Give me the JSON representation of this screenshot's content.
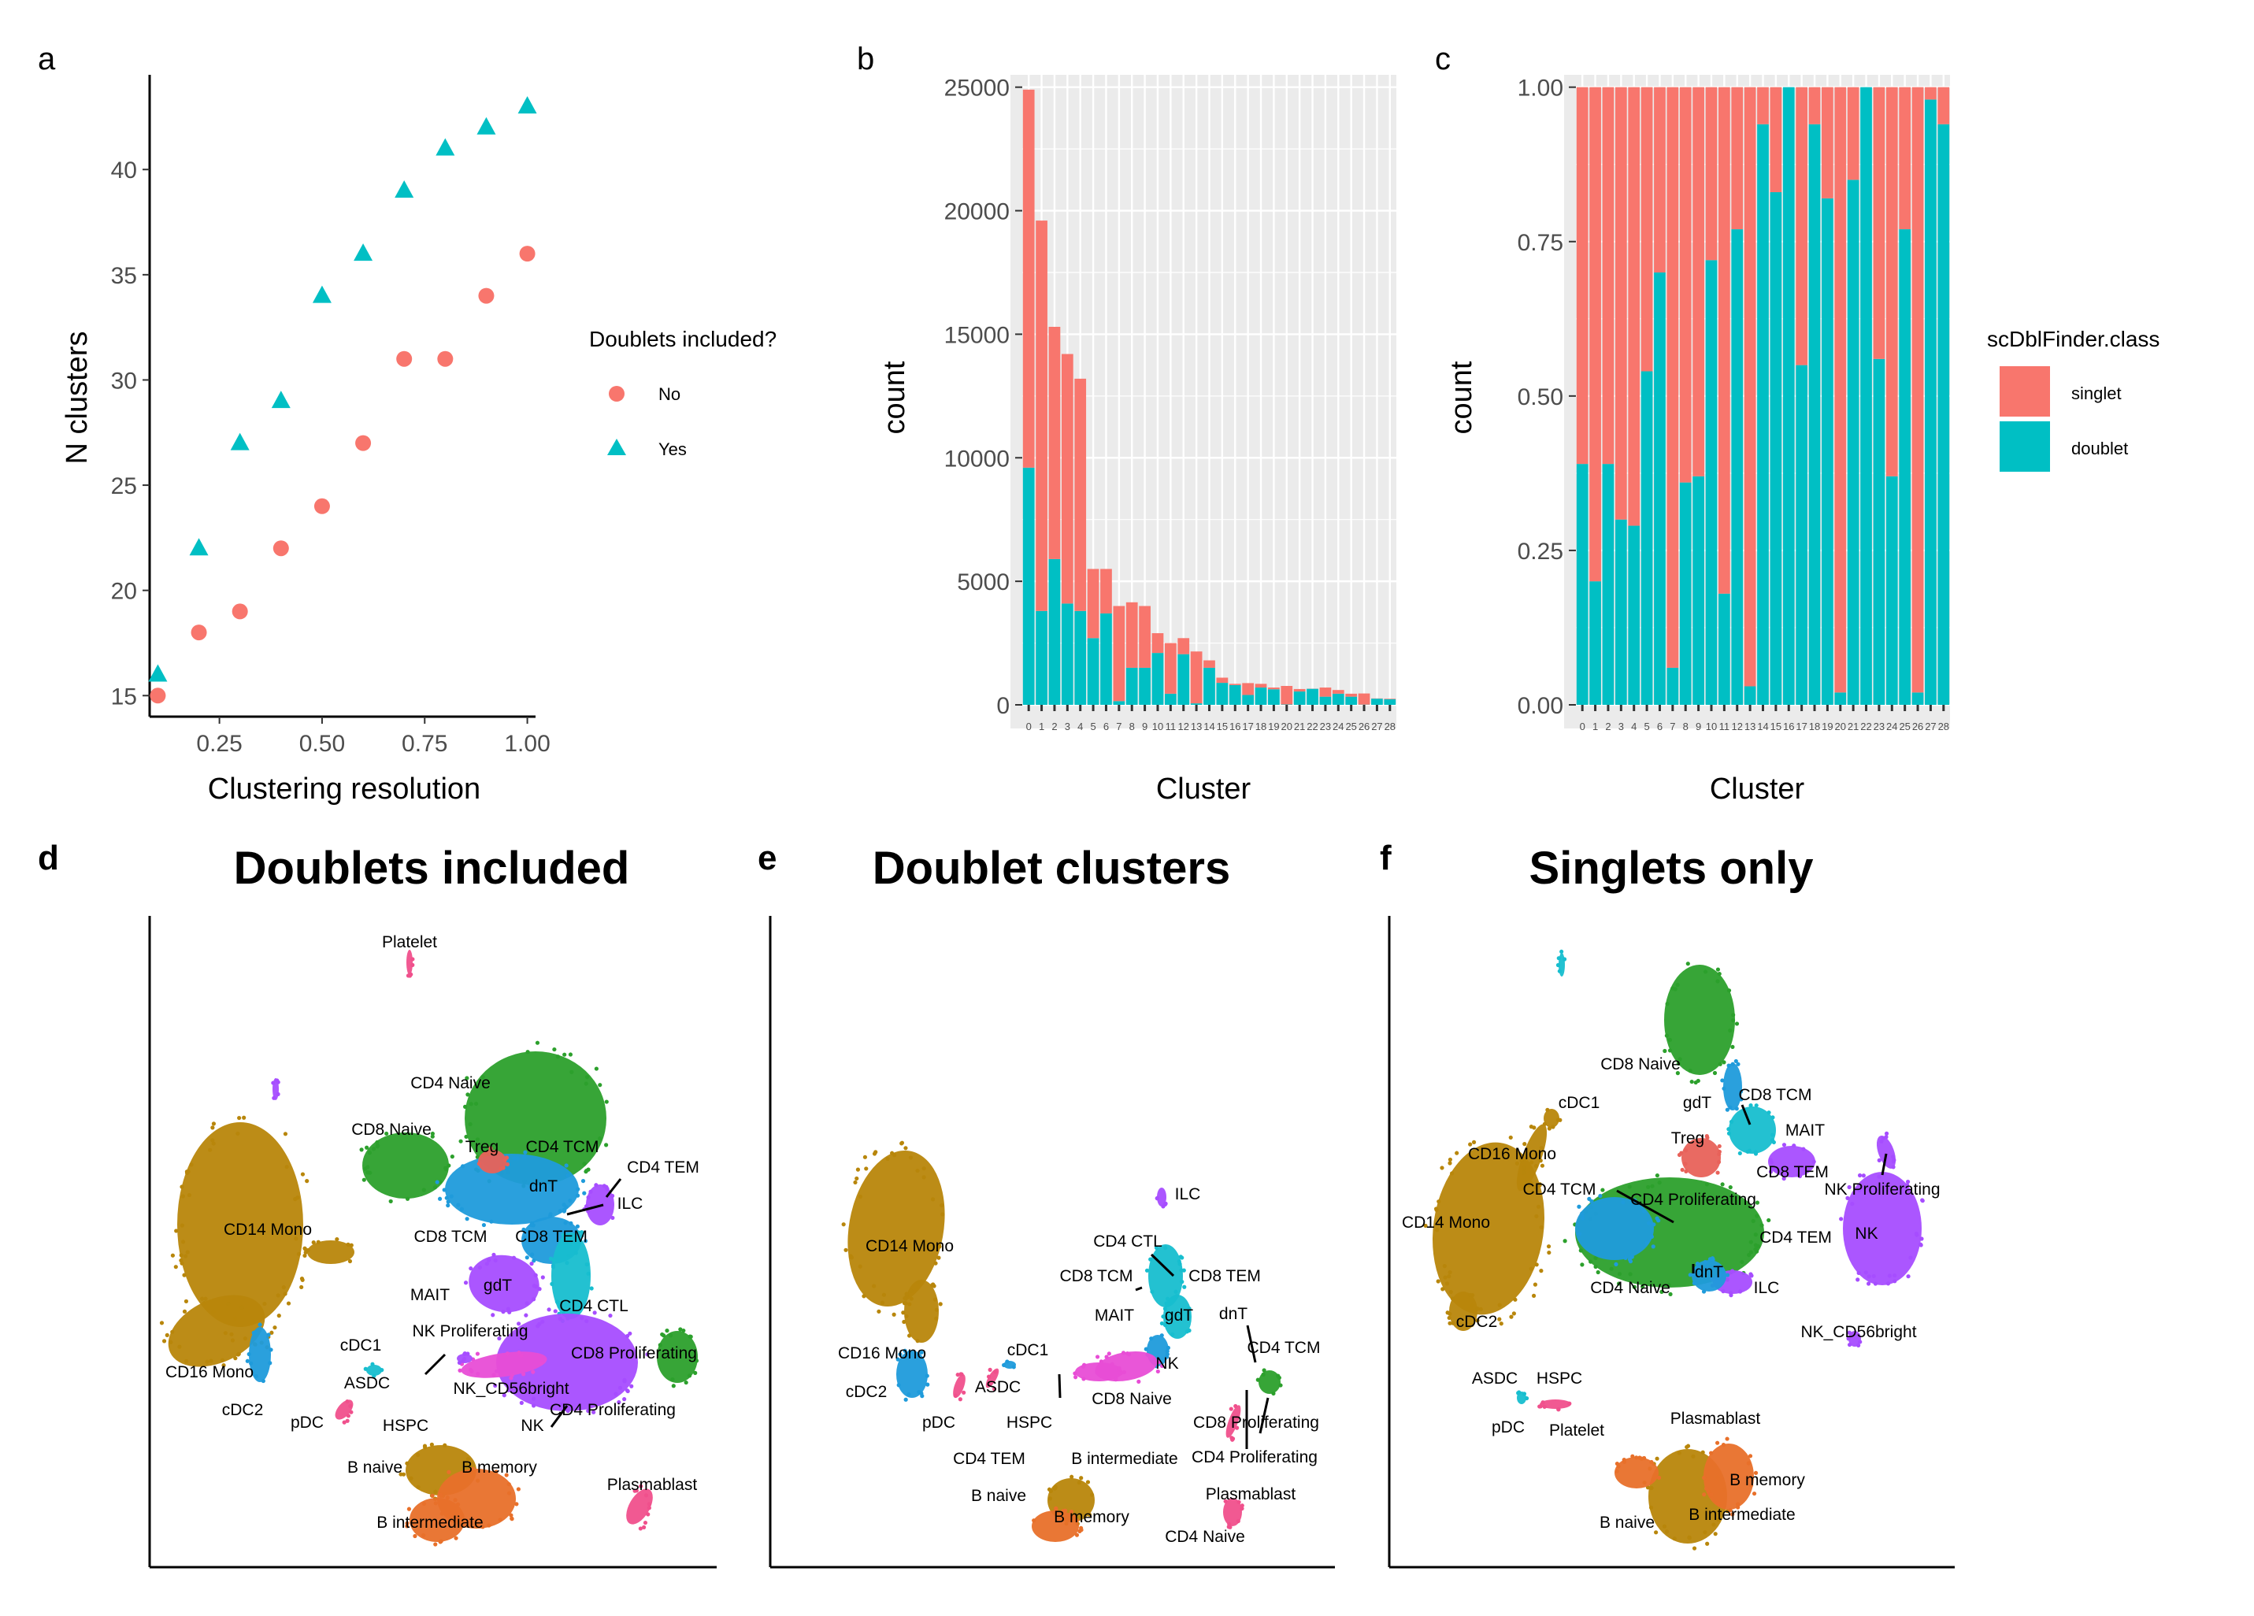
{
  "colors": {
    "no": "#F8766D",
    "yes": "#00BFC4",
    "singlet": "#F8766D",
    "doublet": "#00BFC4",
    "panel_bg": "#EBEBEB",
    "grid": "#FFFFFF",
    "umap": [
      "#B8860B",
      "#2CA02C",
      "#1F9BDB",
      "#A64DFF",
      "#E84DD6",
      "#E8702A",
      "#17BECF",
      "#F0508C",
      "#E8625A"
    ]
  },
  "panels": {
    "a": "a",
    "b": "b",
    "c": "c",
    "d": "d",
    "e": "e",
    "f": "f"
  },
  "chart_data": [
    {
      "id": "a",
      "type": "scatter",
      "xlabel": "Clustering resolution",
      "ylabel": "N clusters",
      "xlim": [
        0.08,
        1.02
      ],
      "ylim": [
        14,
        44.5
      ],
      "xticks": [
        0.25,
        0.5,
        0.75,
        1.0
      ],
      "xtick_labels": [
        "0.25",
        "0.50",
        "0.75",
        "1.00"
      ],
      "yticks": [
        15,
        20,
        25,
        30,
        35,
        40
      ],
      "yticklabels": [
        "15",
        "20",
        "25",
        "30",
        "35",
        "40"
      ],
      "legend_title": "Doublets included?",
      "series": [
        {
          "name": "No",
          "marker": "circle",
          "x": [
            0.1,
            0.2,
            0.3,
            0.4,
            0.5,
            0.6,
            0.7,
            0.8,
            0.9,
            1.0
          ],
          "y": [
            15,
            18,
            19,
            22,
            24,
            27,
            31,
            31,
            34,
            36
          ]
        },
        {
          "name": "Yes",
          "marker": "triangle",
          "x": [
            0.1,
            0.2,
            0.3,
            0.4,
            0.5,
            0.6,
            0.7,
            0.8,
            0.9,
            1.0
          ],
          "y": [
            16,
            22,
            27,
            29,
            34,
            36,
            39,
            41,
            42,
            43
          ]
        }
      ]
    },
    {
      "id": "b",
      "type": "bar",
      "stacked": true,
      "xlabel": "Cluster",
      "ylabel": "count",
      "ylim": [
        0,
        25500
      ],
      "yticks": [
        0,
        5000,
        10000,
        15000,
        20000,
        25000
      ],
      "yticklabels": [
        "0",
        "5000",
        "10000",
        "15000",
        "20000",
        "25000"
      ],
      "categories": [
        "0",
        "1",
        "2",
        "3",
        "4",
        "5",
        "6",
        "7",
        "8",
        "9",
        "10",
        "11",
        "12",
        "13",
        "14",
        "15",
        "16",
        "17",
        "18",
        "19",
        "20",
        "21",
        "22",
        "23",
        "24",
        "25",
        "26",
        "27",
        "28"
      ],
      "series": [
        {
          "name": "doublet",
          "values": [
            9600,
            3800,
            5900,
            4100,
            3800,
            2700,
            3700,
            150,
            1500,
            1500,
            2100,
            450,
            2050,
            60,
            1500,
            890,
            800,
            400,
            700,
            630,
            15,
            540,
            650,
            330,
            450,
            330,
            10,
            250,
            230
          ]
        },
        {
          "name": "singlet",
          "values": [
            15300,
            15800,
            9400,
            10100,
            9400,
            2800,
            1800,
            3850,
            2650,
            2500,
            800,
            2050,
            650,
            2100,
            300,
            210,
            50,
            480,
            150,
            70,
            750,
            100,
            5,
            370,
            150,
            120,
            450,
            10,
            20
          ]
        }
      ]
    },
    {
      "id": "c",
      "type": "bar",
      "stacked": true,
      "xlabel": "Cluster",
      "ylabel": "count",
      "ylim": [
        0,
        1.02
      ],
      "yticks": [
        0,
        0.25,
        0.5,
        0.75,
        1.0
      ],
      "yticklabels": [
        "0.00",
        "0.25",
        "0.50",
        "0.75",
        "1.00"
      ],
      "categories": [
        "0",
        "1",
        "2",
        "3",
        "4",
        "5",
        "6",
        "7",
        "8",
        "9",
        "10",
        "11",
        "12",
        "13",
        "14",
        "15",
        "16",
        "17",
        "18",
        "19",
        "20",
        "21",
        "22",
        "23",
        "24",
        "25",
        "26",
        "27",
        "28"
      ],
      "legend_title": "scDblFinder.class",
      "series": [
        {
          "name": "doublet",
          "values": [
            0.39,
            0.2,
            0.39,
            0.3,
            0.29,
            0.54,
            0.7,
            0.06,
            0.36,
            0.37,
            0.72,
            0.18,
            0.77,
            0.03,
            0.94,
            0.83,
            1.0,
            0.55,
            0.94,
            0.82,
            0.02,
            0.85,
            1.0,
            0.56,
            0.37,
            0.77,
            0.02,
            0.98,
            0.94
          ]
        },
        {
          "name": "singlet",
          "values": [
            0.61,
            0.8,
            0.61,
            0.7,
            0.71,
            0.46,
            0.3,
            0.94,
            0.64,
            0.63,
            0.28,
            0.82,
            0.23,
            0.97,
            0.06,
            0.17,
            0.0,
            0.45,
            0.06,
            0.18,
            0.98,
            0.15,
            0.0,
            0.44,
            0.63,
            0.23,
            0.98,
            0.02,
            0.06
          ]
        }
      ]
    }
  ],
  "umaps": [
    {
      "id": "d",
      "title": "Doublets included",
      "labels": [
        "Platelet",
        "CD4 Naive",
        "CD8 Naive",
        "Treg",
        "CD4 TCM",
        "CD4 TEM",
        "dnT",
        "ILC",
        "CD14 Mono",
        "CD8 TCM",
        "CD8 TEM",
        "MAIT",
        "gdT",
        "CD4 CTL",
        "NK Proliferating",
        "cDC1",
        "CD8 Proliferating",
        "ASDC",
        "NK_CD56bright",
        "CD16 Mono",
        "cDC2",
        "pDC",
        "HSPC",
        "NK",
        "CD4 Proliferating",
        "B naive",
        "B memory",
        "Plasmablast",
        "B intermediate"
      ]
    },
    {
      "id": "e",
      "title": "Doublet clusters",
      "labels": [
        "ILC",
        "CD14 Mono",
        "CD4 CTL",
        "CD8 TCM",
        "CD8 TEM",
        "MAIT",
        "gdT",
        "dnT",
        "CD4 TCM",
        "cDC1",
        "NK",
        "CD16 Mono",
        "ASDC",
        "CD8 Naive",
        "cDC2",
        "HSPC",
        "pDC",
        "CD8 Proliferating",
        "CD4 TEM",
        "B intermediate",
        "CD4 Proliferating",
        "B naive",
        "Plasmablast",
        "B memory",
        "CD4 Naive"
      ]
    },
    {
      "id": "f",
      "title": "Singlets only",
      "labels": [
        "CD8 Naive",
        "CD8 TCM",
        "gdT",
        "cDC1",
        "MAIT",
        "Treg",
        "CD16 Mono",
        "CD8 TEM",
        "NK Proliferating",
        "CD4 TCM",
        "CD4 Proliferating",
        "CD14 Mono",
        "CD4 TEM",
        "NK",
        "dnT",
        "CD4 Naive",
        "ILC",
        "cDC2",
        "NK_CD56bright",
        "ASDC",
        "HSPC",
        "pDC",
        "Platelet",
        "Plasmablast",
        "B memory",
        "B naive",
        "B intermediate"
      ]
    }
  ]
}
